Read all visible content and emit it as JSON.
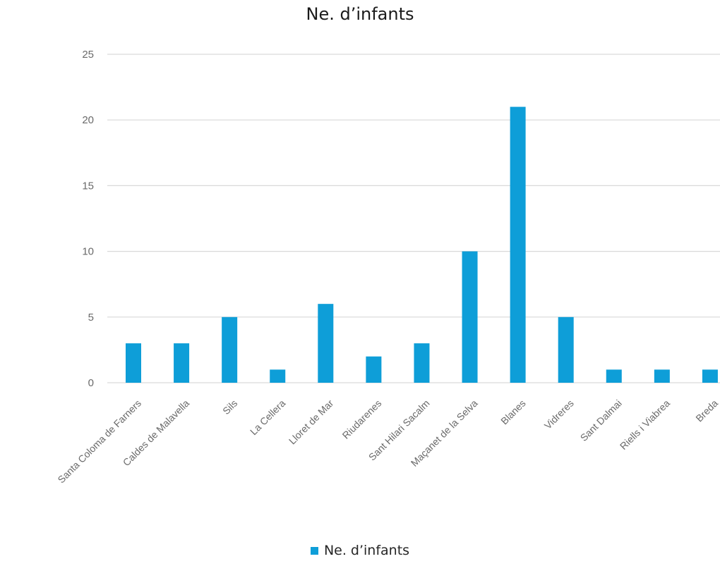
{
  "chart_data": {
    "type": "bar",
    "title": "Ne. d’infants",
    "categories": [
      "Santa Coloma de Farners",
      "Caldes de Malavella",
      "Sils",
      "La Cellera",
      "Lloret de Mar",
      "Riudarenes",
      "Sant Hilari Sacalm",
      "Maçanet de la Selva",
      "Blanes",
      "Vidreres",
      "Sant Dalmai",
      "Riells i Viabrea",
      "Breda"
    ],
    "series": [
      {
        "name": "Ne. d’infants",
        "values": [
          3,
          3,
          5,
          1,
          6,
          2,
          3,
          10,
          21,
          5,
          1,
          1,
          1
        ]
      }
    ],
    "ylim": [
      0,
      25
    ],
    "yticks": [
      0,
      5,
      10,
      15,
      20,
      25
    ],
    "grid": true,
    "legend_position": "bottom",
    "bar_color": "#0e9ed8",
    "grid_color": "#d9d9d9"
  }
}
